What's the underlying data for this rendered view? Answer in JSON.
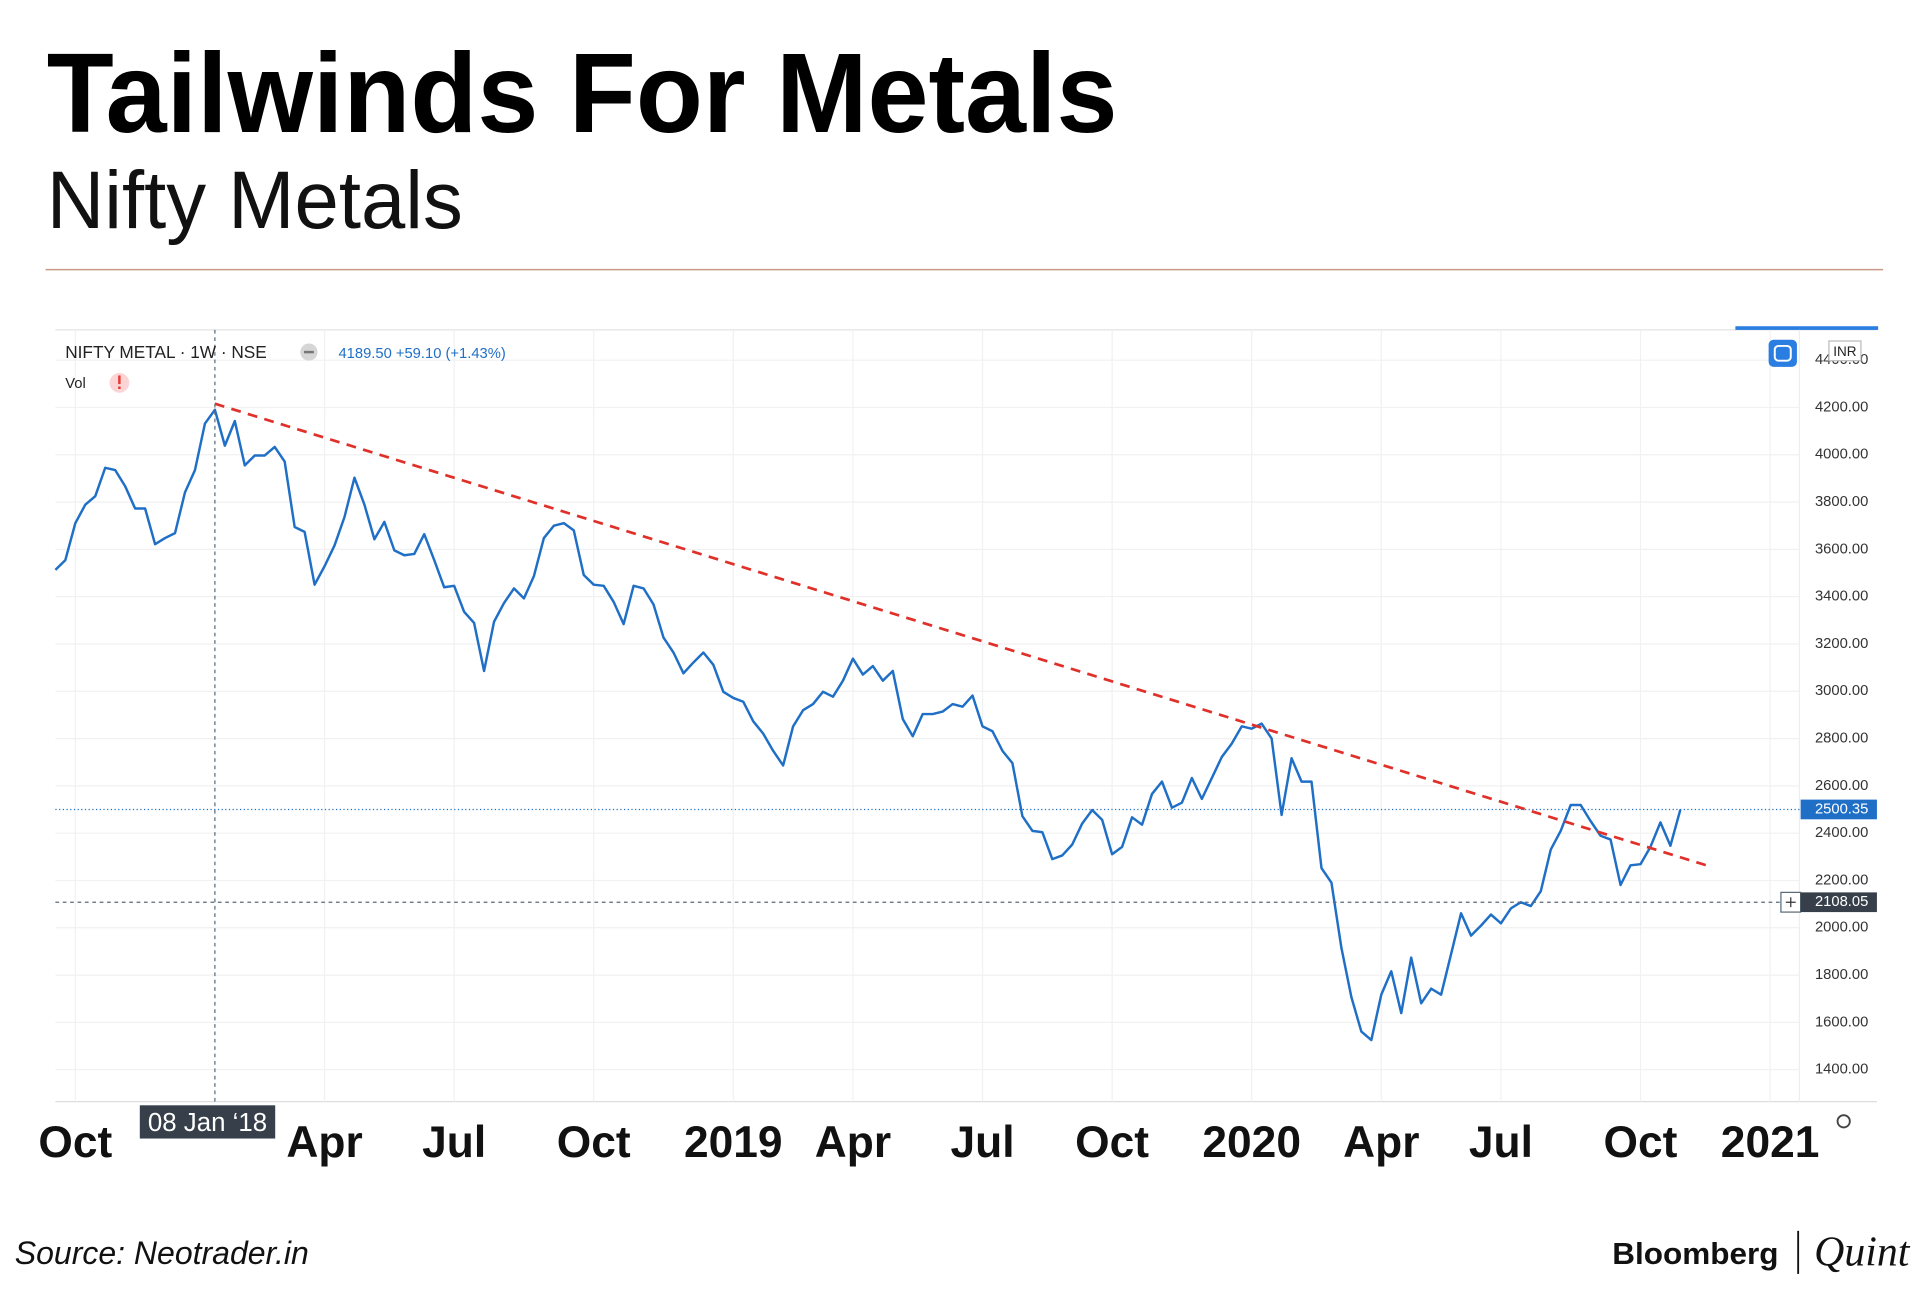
{
  "title": "Tailwinds For Metals",
  "subtitle": "Nifty Metals",
  "source": "Source: Neotrader.in",
  "brand": [
    "Bloomberg",
    "Quint"
  ],
  "chart_data": {
    "type": "line",
    "header": {
      "quote": "4189.50 +59.10 (+1.43%)",
      "volume_label": "Vol",
      "currency": "INR"
    },
    "categories": [
      null,
      null,
      "Oct",
      null,
      null,
      null,
      null,
      null,
      null,
      null,
      null,
      null,
      null,
      null,
      null,
      null,
      "08 Jan ‘18",
      null,
      null,
      null,
      null,
      null,
      null,
      null,
      null,
      null,
      null,
      "Apr",
      null,
      null,
      null,
      null,
      null,
      null,
      null,
      null,
      null,
      null,
      null,
      null,
      "Jul",
      null,
      null,
      null,
      null,
      null,
      null,
      null,
      null,
      null,
      null,
      null,
      null,
      null,
      "Oct",
      null,
      null,
      null,
      null,
      null,
      null,
      null,
      null,
      null,
      null,
      null,
      null,
      null,
      "2019",
      null,
      null,
      null,
      null,
      null,
      null,
      null,
      null,
      null,
      null,
      null,
      "Apr",
      null,
      null,
      null,
      null,
      null,
      null,
      null,
      null,
      null,
      null,
      null,
      null,
      "Jul",
      null,
      null,
      null,
      null,
      null,
      null,
      null,
      null,
      null,
      null,
      null,
      null,
      "Oct",
      null,
      null,
      null,
      null,
      null,
      null,
      null,
      null,
      null,
      null,
      null,
      null,
      null,
      "2020",
      null,
      null,
      null,
      null,
      null,
      null,
      null,
      null,
      null,
      null,
      null,
      null,
      "Apr",
      null,
      null,
      null,
      null,
      null,
      null,
      null,
      null,
      null,
      null,
      null,
      "Jul",
      null,
      null,
      null,
      null,
      null,
      null,
      null,
      null,
      null,
      null,
      null,
      null,
      null,
      "Oct",
      null,
      null,
      null,
      null,
      null,
      null,
      null,
      null,
      null,
      null,
      null,
      null,
      "2021"
    ],
    "series": [
      {
        "name": "NIFTY METAL · 1W · NSE",
        "color": "#1f6fc6",
        "values": [
          3513,
          3555,
          3711,
          3789,
          3825,
          3945,
          3935,
          3867,
          3773,
          3773,
          3622,
          3648,
          3669,
          3841,
          3935,
          4132,
          4190,
          4039,
          4143,
          3955,
          3997,
          3997,
          4033,
          3971,
          3695,
          3674,
          3451,
          3529,
          3617,
          3737,
          3903,
          3789,
          3643,
          3716,
          3596,
          3575,
          3581,
          3664,
          3555,
          3440,
          3446,
          3336,
          3289,
          3086,
          3294,
          3373,
          3435,
          3393,
          3487,
          3648,
          3700,
          3711,
          3680,
          3492,
          3451,
          3446,
          3378,
          3284,
          3446,
          3435,
          3367,
          3227,
          3164,
          3076,
          3122,
          3164,
          3112,
          2998,
          2972,
          2956,
          2873,
          2821,
          2748,
          2686,
          2852,
          2920,
          2946,
          2998,
          2977,
          3045,
          3138,
          3071,
          3107,
          3045,
          3086,
          2883,
          2810,
          2904,
          2904,
          2914,
          2946,
          2935,
          2982,
          2852,
          2831,
          2748,
          2696,
          2472,
          2410,
          2404,
          2290,
          2306,
          2352,
          2441,
          2498,
          2456,
          2311,
          2342,
          2467,
          2436,
          2566,
          2618,
          2508,
          2529,
          2633,
          2545,
          2633,
          2722,
          2779,
          2852,
          2842,
          2863,
          2800,
          2477,
          2717,
          2618,
          2618,
          2253,
          2191,
          1915,
          1707,
          1561,
          1525,
          1717,
          1816,
          1639,
          1874,
          1681,
          1743,
          1717,
          1889,
          2061,
          1967,
          2009,
          2056,
          2019,
          2082,
          2108,
          2092,
          2155,
          2331,
          2410,
          2519,
          2519,
          2451,
          2389,
          2373,
          2181,
          2264,
          2269,
          2342,
          2446,
          2347,
          2500,
          null,
          null,
          null,
          null,
          null,
          null,
          null,
          null,
          null
        ]
      }
    ],
    "trendline": {
      "color": "#e0302a",
      "index": [
        16,
        166
      ],
      "values": [
        4216,
        2259
      ]
    },
    "last_price": 2500.35,
    "crosshair": {
      "category": "08 Jan ‘18",
      "y": 2108.05
    },
    "ylim": [
      1265,
      4528
    ],
    "yticks": [
      {
        "value": 1400,
        "label": "1400.00"
      },
      {
        "value": 1600,
        "label": "1600.00"
      },
      {
        "value": 1800,
        "label": "1800.00"
      },
      {
        "value": 2000,
        "label": "2000.00"
      },
      {
        "value": 2200,
        "label": "2200.00"
      },
      {
        "value": 2400,
        "label": "2400.00"
      },
      {
        "value": 2600,
        "label": "2600.00"
      },
      {
        "value": 2800,
        "label": "2800.00"
      },
      {
        "value": 3000,
        "label": "3000.00"
      },
      {
        "value": 3200,
        "label": "3200.00"
      },
      {
        "value": 3400,
        "label": "3400.00"
      },
      {
        "value": 3600,
        "label": "3600.00"
      },
      {
        "value": 3800,
        "label": "3800.00"
      },
      {
        "value": 4000,
        "label": "4000.00"
      },
      {
        "value": 4200,
        "label": "4200.00"
      },
      {
        "value": 4400,
        "label": "4400.00"
      }
    ],
    "grid": true
  }
}
